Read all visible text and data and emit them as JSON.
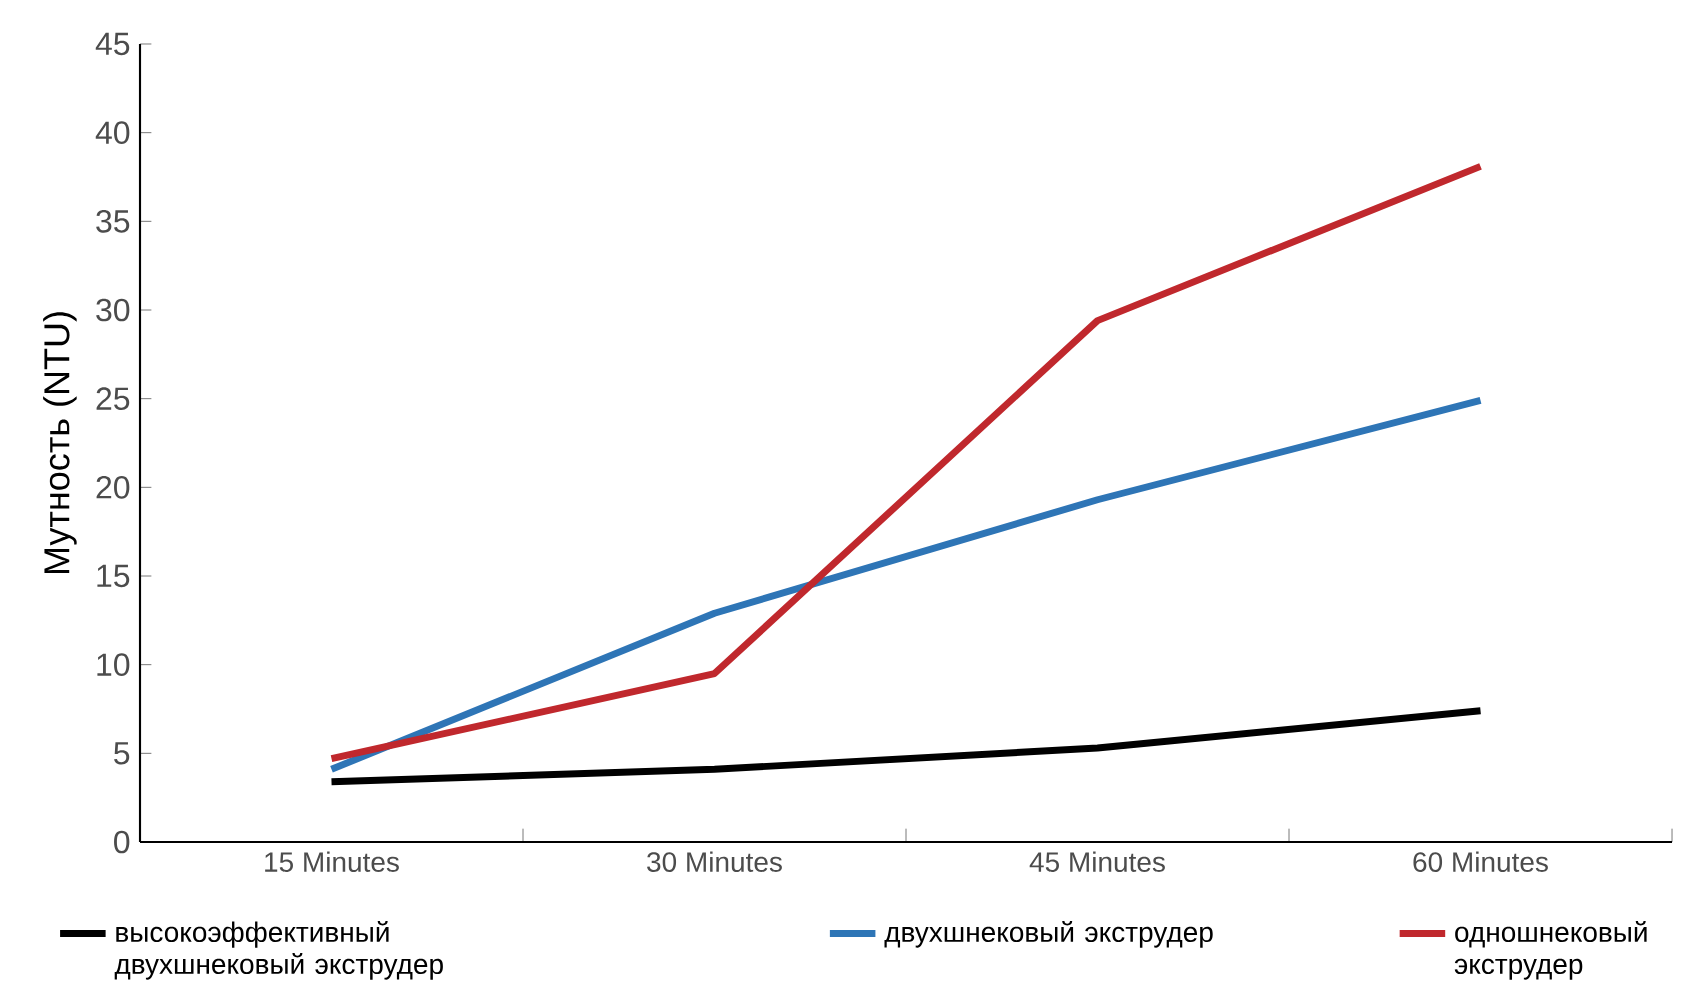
{
  "chart_data": {
    "type": "line",
    "ylabel": "Мутность (NTU)",
    "categories": [
      "15 Minutes",
      "30 Minutes",
      "45 Minutes",
      "60 Minutes"
    ],
    "ylim": [
      0,
      45
    ],
    "yticks": [
      0,
      5,
      10,
      15,
      20,
      25,
      30,
      35,
      40,
      45
    ],
    "grid": false,
    "legend": "bottom",
    "marker": "none",
    "line_style": "solid",
    "series": [
      {
        "name": "высокоэффективный двухшнековый экструдер",
        "color": "#000000",
        "values": [
          3.4,
          4.1,
          5.3,
          7.4
        ]
      },
      {
        "name": "двухшнековый экструдер",
        "color": "#2e75b6",
        "values": [
          4.1,
          12.9,
          19.3,
          24.9
        ]
      },
      {
        "name": "одношнековый экструдер",
        "color": "#c0282d",
        "values": [
          4.7,
          9.5,
          29.4,
          38.1
        ]
      }
    ]
  }
}
